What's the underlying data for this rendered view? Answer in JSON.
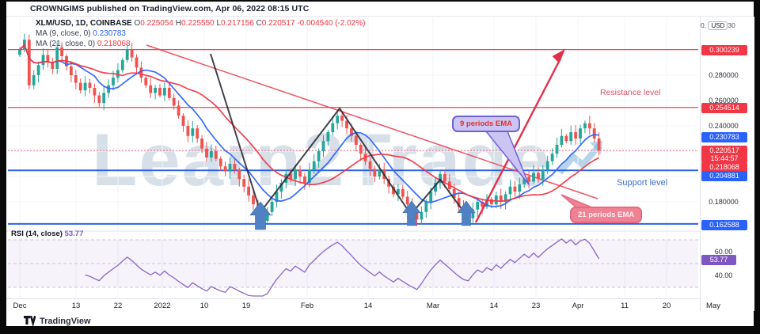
{
  "header": {
    "published": "CROWNGIMS published on TradingView.com, Apr 06, 2022 08:15 UTC"
  },
  "legend": {
    "symbol": "XLM/USD, 1D, COINBASE",
    "items": [
      {
        "label": "O",
        "value": "0.225054"
      },
      {
        "label": "H",
        "value": "0.225550"
      },
      {
        "label": "L",
        "value": "0.217156"
      },
      {
        "label": "C",
        "value": "0.220517"
      }
    ],
    "change": "-0.004540 (-2.02%)",
    "ma9_label": "MA (9, close, 0)",
    "ma9_value": "0.230783",
    "ma21_label": "MA (21, close, 0)",
    "ma21_value": "0.218068"
  },
  "annotations": {
    "resistance": "Resistance level",
    "support": "Support level",
    "ema9": "9 periods EMA",
    "ema21": "21 periods EMA"
  },
  "price_axis": {
    "prefix": "0.",
    "usd": "USD",
    "suffix": "30",
    "ticks": [
      "0.280000",
      "0.260000",
      "0.240000",
      "0.180000"
    ],
    "badges": [
      {
        "text": "0.300239",
        "style": "red"
      },
      {
        "text": "0.254514",
        "style": "red"
      },
      {
        "text": "0.230783",
        "style": "blue"
      },
      {
        "text": "0.220517",
        "sub": "15:44:57",
        "style": "red"
      },
      {
        "text": "0.218068",
        "style": "red"
      },
      {
        "text": "0.204881",
        "style": "blue"
      },
      {
        "text": "0.162588",
        "style": "blue"
      }
    ]
  },
  "rsi": {
    "label": "RSI (14, close)",
    "value": "53.77",
    "ticks": [
      "60.00",
      "40.00"
    ]
  },
  "watermark": "Learn2Trade",
  "footer": {
    "brand": "TradingView"
  },
  "colors": {
    "up": "#26a69a",
    "down": "#ef5350",
    "ma9": "#2962ff",
    "ma21": "#f23645",
    "support_line": "#2e63e8",
    "resistance_line": "#ef4155",
    "rsi_line": "#7e57c2",
    "arrow_blue": "#5181c2",
    "trend_black": "#1e222d",
    "red_arrow": "#e0314b"
  },
  "chart_data": {
    "type": "candlestick",
    "title": "XLM/USD 1D COINBASE",
    "legend_last": {
      "open": 0.225054,
      "high": 0.22555,
      "low": 0.217156,
      "close": 0.220517,
      "change": -0.00454,
      "change_pct": -2.02
    },
    "x_labels": [
      "Dec",
      "13",
      "22",
      "2022",
      "10",
      "19",
      "Feb",
      "14",
      "Mar",
      "14",
      "23",
      "Apr",
      "11",
      "20",
      "May"
    ],
    "ylim": [
      0.155,
      0.325
    ],
    "grid": true,
    "levels": {
      "resistance": [
        0.300239,
        0.254514
      ],
      "support": [
        0.204881,
        0.162588
      ],
      "last_price": 0.220517,
      "ma9": 0.230783,
      "ma21": 0.218068,
      "rsi_last": 53.77
    },
    "closes": [
      0.3,
      0.308,
      0.272,
      0.28,
      0.288,
      0.296,
      0.29,
      0.285,
      0.302,
      0.295,
      0.287,
      0.28,
      0.274,
      0.268,
      0.274,
      0.27,
      0.264,
      0.258,
      0.266,
      0.272,
      0.278,
      0.284,
      0.292,
      0.3,
      0.294,
      0.286,
      0.278,
      0.272,
      0.266,
      0.27,
      0.264,
      0.27,
      0.262,
      0.256,
      0.248,
      0.24,
      0.232,
      0.238,
      0.23,
      0.222,
      0.215,
      0.22,
      0.214,
      0.208,
      0.204,
      0.21,
      0.205,
      0.198,
      0.192,
      0.185,
      0.178,
      0.17,
      0.165,
      0.172,
      0.18,
      0.188,
      0.195,
      0.202,
      0.198,
      0.205,
      0.2,
      0.195,
      0.205,
      0.212,
      0.22,
      0.228,
      0.235,
      0.242,
      0.248,
      0.244,
      0.238,
      0.232,
      0.225,
      0.218,
      0.212,
      0.206,
      0.2,
      0.205,
      0.198,
      0.192,
      0.186,
      0.19,
      0.184,
      0.178,
      0.172,
      0.166,
      0.172,
      0.18,
      0.188,
      0.195,
      0.202,
      0.196,
      0.19,
      0.183,
      0.176,
      0.17,
      0.167,
      0.174,
      0.18,
      0.176,
      0.182,
      0.178,
      0.185,
      0.18,
      0.186,
      0.192,
      0.188,
      0.194,
      0.2,
      0.196,
      0.203,
      0.198,
      0.205,
      0.212,
      0.218,
      0.225,
      0.232,
      0.228,
      0.235,
      0.23,
      0.238,
      0.242,
      0.238,
      0.23,
      0.2205
    ]
  }
}
